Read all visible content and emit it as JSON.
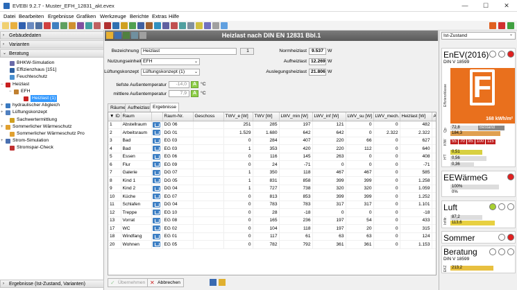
{
  "window": {
    "title": "EVEBI 9.2.7 - Muster_EFH_12831_akt.evex",
    "minimize": "—",
    "maximize": "☐",
    "close": "✕"
  },
  "menu": [
    "Datei",
    "Bearbeiten",
    "Ergebnisse",
    "Grafiken",
    "Werkzeuge",
    "Berichte",
    "Extras",
    "Hilfe"
  ],
  "left": {
    "sections": {
      "gebaeude": "Gebäudedaten",
      "varianten": "Varianten",
      "beratung": "Beratung",
      "ergebnisse": "Ergebnisse (Ist-Zustand, Varianten)"
    },
    "tree": [
      {
        "label": "BHKW-Simulation",
        "indent": 14,
        "color": "#6a6aa8"
      },
      {
        "label": "Effizienzhaus [151]",
        "indent": 14,
        "color": "#2c5fa0"
      },
      {
        "label": "Feuchteschutz",
        "indent": 14,
        "color": "#4a90d0"
      },
      {
        "label": "Heizlast",
        "indent": 8,
        "color": "#c82020",
        "exp": "−"
      },
      {
        "label": "EFH",
        "indent": 20,
        "color": "#c08030",
        "exp": "−"
      },
      {
        "label": "Heizlast (1)",
        "indent": 34,
        "color": "#c82020",
        "selected": true
      },
      {
        "label": "hydraulischer Abgleich",
        "indent": 8,
        "color": "#3a7ac0",
        "exp": "+"
      },
      {
        "label": "Lüftungskonzept",
        "indent": 8,
        "color": "#5080c0",
        "exp": "+"
      },
      {
        "label": "Sachwertermittlung",
        "indent": 14,
        "color": "#d0a020"
      },
      {
        "label": "Sommerlicher Wärmeschutz",
        "indent": 8,
        "color": "#e0a030",
        "exp": "+"
      },
      {
        "label": "Sommerlicher Wärmeschutz Pro",
        "indent": 14,
        "color": "#e0a030"
      },
      {
        "label": "Strom-Simulation",
        "indent": 8,
        "color": "#4a70b0",
        "exp": "+"
      },
      {
        "label": "Stromspar-Check",
        "indent": 14,
        "color": "#c03030"
      }
    ]
  },
  "main": {
    "title": "Heizlast nach DIN EN 12831 Bbl.1",
    "form": {
      "bezeichnung_label": "Bezeichnung",
      "bezeichnung_value": "Heizlast",
      "bezeichnung_num": "1",
      "nutzung_label": "Nutzungseinheit",
      "nutzung_value": "EFH",
      "lueftung_label": "Lüftungskonzept",
      "lueftung_value": "Lüftungskonzept (1)",
      "tiefste_label": "tiefste Außentemperatur",
      "tiefste_value": "-14,0",
      "tiefste_unit": "°C",
      "mittlere_label": "mittlere Außentemperatur",
      "mittlere_value": "7,9",
      "mittlere_unit": "°C",
      "norm_label": "Normheizlast",
      "norm_value": "9.537",
      "norm_unit": "W",
      "aufheiz_label": "Aufheizlast",
      "aufheiz_value": "12.269",
      "aufheiz_unit": "W",
      "ausleg_label": "Auslegungsheizlast",
      "ausleg_value": "21.806",
      "ausleg_unit": "W",
      "a_button": "A"
    },
    "tabs": [
      "Räume",
      "Aufheizlast",
      "Ergebnisse"
    ],
    "columns": [
      "▼ ID",
      "Raum",
      "",
      "Raum-Nr.",
      "Geschoss",
      "TWV_e [W]",
      "TWV [W]",
      "LWV_min [W]",
      "LWV_inf [W]",
      "LWV_su [W]",
      "LWV_mech...",
      "Heizlast [W]",
      "A"
    ],
    "rows": [
      [
        "1",
        "Abstellraum",
        "DG 06",
        "",
        "251",
        "285",
        "197",
        "121",
        "0",
        "0",
        "482"
      ],
      [
        "2",
        "Arbeitsraum",
        "DG 01",
        "",
        "1.529",
        "1.680",
        "642",
        "642",
        "0",
        "2.322",
        "2.322"
      ],
      [
        "3",
        "Bad",
        "EG 03",
        "",
        "0",
        "284",
        "407",
        "220",
        "66",
        "0",
        "627"
      ],
      [
        "4",
        "Bad",
        "EG 03",
        "",
        "1",
        "353",
        "420",
        "220",
        "112",
        "0",
        "640"
      ],
      [
        "5",
        "Essen",
        "EG 06",
        "",
        "0",
        "116",
        "145",
        "263",
        "0",
        "0",
        "408"
      ],
      [
        "6",
        "Flur",
        "EG 09",
        "",
        "0",
        "24",
        "-71",
        "0",
        "0",
        "0",
        "-71"
      ],
      [
        "7",
        "Galerie",
        "DG 07",
        "",
        "1",
        "350",
        "118",
        "467",
        "467",
        "0",
        "585"
      ],
      [
        "8",
        "Kind 1",
        "DG 05",
        "",
        "1",
        "831",
        "858",
        "399",
        "399",
        "0",
        "1.258"
      ],
      [
        "9",
        "Kind 2",
        "DG 04",
        "",
        "1",
        "727",
        "738",
        "320",
        "320",
        "0",
        "1.059"
      ],
      [
        "10",
        "Küche",
        "EG 07",
        "",
        "0",
        "813",
        "853",
        "399",
        "399",
        "0",
        "1.252"
      ],
      [
        "11",
        "Schlafen",
        "DG 04",
        "",
        "0",
        "783",
        "783",
        "317",
        "317",
        "0",
        "1.101"
      ],
      [
        "12",
        "Treppe",
        "EG 10",
        "",
        "0",
        "28",
        "-18",
        "0",
        "0",
        "0",
        "-18"
      ],
      [
        "13",
        "Vorrat",
        "EG 08",
        "",
        "0",
        "165",
        "236",
        "197",
        "54",
        "0",
        "433"
      ],
      [
        "17",
        "WC",
        "EG 02",
        "",
        "0",
        "104",
        "118",
        "197",
        "20",
        "0",
        "315"
      ],
      [
        "18",
        "Windfang",
        "EG 01",
        "",
        "0",
        "117",
        "61",
        "63",
        "63",
        "0",
        "124"
      ],
      [
        "20",
        "Wohnen",
        "EG 05",
        "",
        "0",
        "782",
        "792",
        "361",
        "361",
        "0",
        "1.153"
      ]
    ],
    "buttons": {
      "uebernehmen": "Übernehmen",
      "abbrechen": "Abbrechen"
    }
  },
  "right": {
    "selector": "Ist-Zustand",
    "enev": {
      "title": "EnEV(2016)",
      "din": "DIN V 18599",
      "klasse": "F",
      "value": "168 kWh/m²",
      "side_label": "Effizienzklasse",
      "qp_label": "Qp",
      "qp_value": "72,8",
      "qp_ref": "Bestand",
      "qp2": "184,3",
      "kfw_label": "KfW",
      "kfw_steps": [
        "55",
        "70",
        "85",
        "100",
        "115"
      ],
      "ht_label": "H'T",
      "ht_values": [
        "0,51",
        "0,56",
        "0,36"
      ]
    },
    "ewaerme": {
      "title": "EEWärmeG",
      "v1": "100%",
      "v2": "0%"
    },
    "luft": {
      "title": "Luft",
      "side": "Infiltr.",
      "v1": "87,2",
      "v2": "113,6"
    },
    "sommer": {
      "title": "Sommer"
    },
    "beratung": {
      "title": "Beratung",
      "din": "DIN V 18599",
      "ekz_label": "EKZ",
      "ekz_value": "213,2"
    }
  }
}
